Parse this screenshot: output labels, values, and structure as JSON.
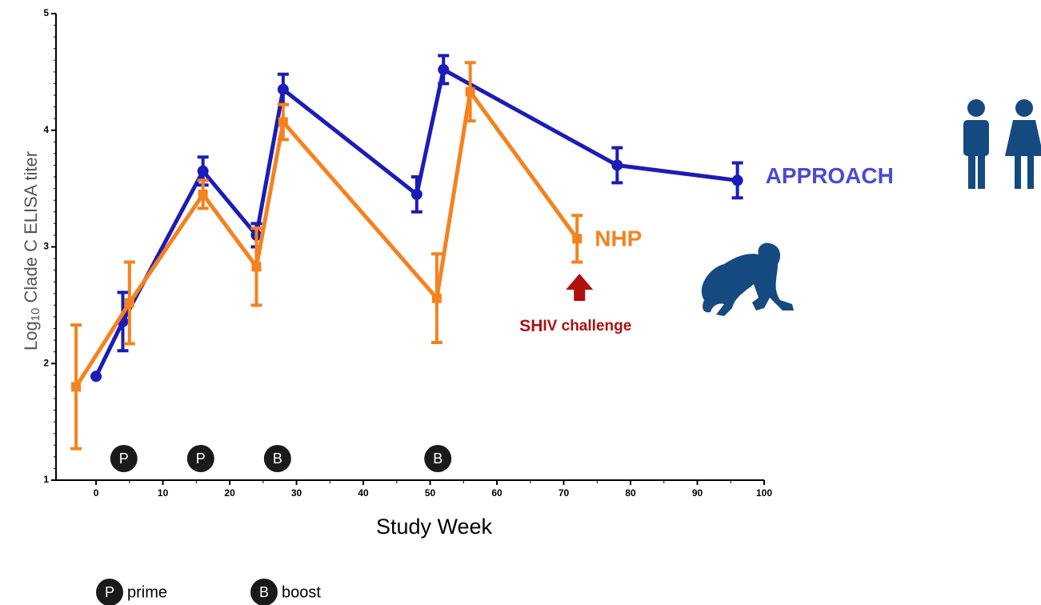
{
  "chart_data": {
    "type": "line",
    "xlabel": "Study Week",
    "ylabel": {
      "base": "Log",
      "subscript": "10",
      "rest": " Clade C ELISA titer"
    },
    "xlim": [
      -6,
      100
    ],
    "ylim": [
      1,
      5
    ],
    "xticks": [
      0,
      10,
      20,
      30,
      40,
      50,
      60,
      70,
      80,
      90,
      100
    ],
    "yticks": [
      1,
      2,
      3,
      4,
      5
    ],
    "series": [
      {
        "name": "APPROACH",
        "color": "#1c1cb8",
        "label_color": "#4b4bd0",
        "marker": "circle",
        "x": [
          0,
          4,
          16,
          24,
          28,
          48,
          52,
          78,
          96
        ],
        "values": [
          1.89,
          2.36,
          3.65,
          3.1,
          4.35,
          3.45,
          4.52,
          3.7,
          3.57
        ],
        "errors": [
          0,
          0.25,
          0.12,
          0.1,
          0.13,
          0.15,
          0.12,
          0.15,
          0.15
        ]
      },
      {
        "name": "NHP",
        "color": "#f5821f",
        "label_color": "#f5821f",
        "marker": "square",
        "x": [
          -3,
          5,
          16,
          24,
          28,
          51,
          56,
          72
        ],
        "values": [
          1.8,
          2.52,
          3.45,
          2.83,
          4.07,
          2.56,
          4.33,
          3.07
        ],
        "errors": [
          0.53,
          0.35,
          0.12,
          0.33,
          0.15,
          0.38,
          0.25,
          0.2
        ]
      }
    ],
    "annotation": {
      "bold": "SH",
      "rest": "IV challenge",
      "x": 72,
      "color": "#b01010"
    },
    "markers": [
      {
        "x": 2,
        "label": "P"
      },
      {
        "x": 13.5,
        "label": "P"
      },
      {
        "x": 25,
        "label": "B"
      },
      {
        "x": 49,
        "label": "B"
      }
    ],
    "legend": [
      {
        "symbol": "P",
        "label": "prime"
      },
      {
        "symbol": "B",
        "label": "boost"
      }
    ]
  }
}
